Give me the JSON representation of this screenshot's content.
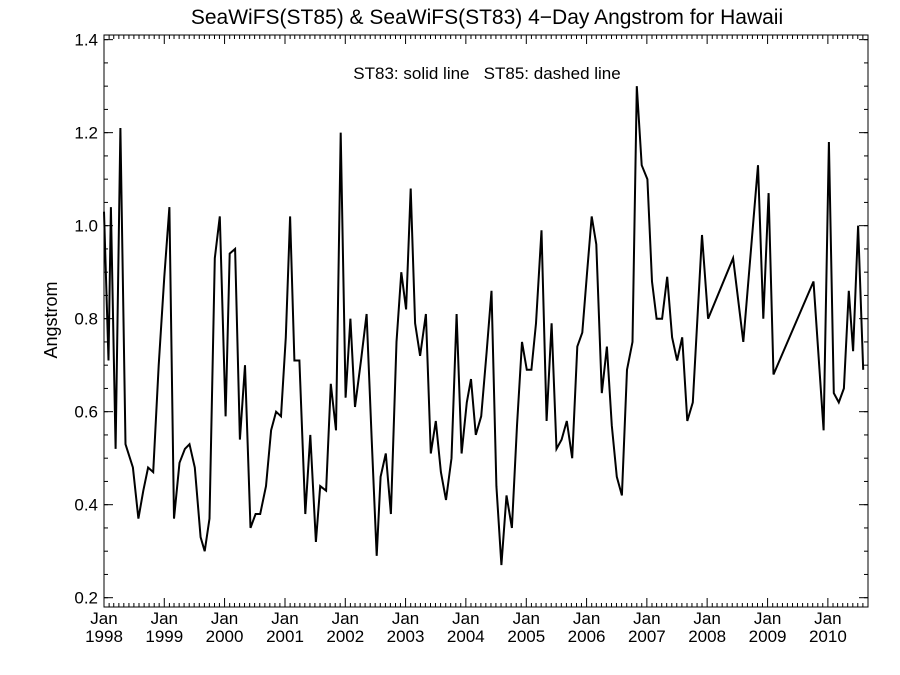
{
  "chart_data": {
    "type": "line",
    "title": "SeaWiFS(ST85) & SeaWiFS(ST83) 4−Day Angstrom for Hawaii",
    "annotation": "ST83: solid line   ST85: dashed line",
    "xlabel": "",
    "ylabel": "Angstrom",
    "xlim": [
      "1998-01-01",
      "2010-09-01"
    ],
    "ylim": [
      0.18,
      1.41
    ],
    "yticks": [
      0.2,
      0.4,
      0.6,
      0.8,
      1.0,
      1.2,
      1.4
    ],
    "ytick_labels": [
      "0.2",
      "0.4",
      "0.6",
      "0.8",
      "1.0",
      "1.2",
      "1.4"
    ],
    "xticks": [
      {
        "date": "1998-01-01",
        "month": "Jan",
        "year": "1998"
      },
      {
        "date": "1999-01-01",
        "month": "Jan",
        "year": "1999"
      },
      {
        "date": "2000-01-01",
        "month": "Jan",
        "year": "2000"
      },
      {
        "date": "2001-01-01",
        "month": "Jan",
        "year": "2001"
      },
      {
        "date": "2002-01-01",
        "month": "Jan",
        "year": "2002"
      },
      {
        "date": "2003-01-01",
        "month": "Jan",
        "year": "2003"
      },
      {
        "date": "2004-01-01",
        "month": "Jan",
        "year": "2004"
      },
      {
        "date": "2005-01-01",
        "month": "Jan",
        "year": "2005"
      },
      {
        "date": "2006-01-01",
        "month": "Jan",
        "year": "2006"
      },
      {
        "date": "2007-01-01",
        "month": "Jan",
        "year": "2007"
      },
      {
        "date": "2008-01-01",
        "month": "Jan",
        "year": "2008"
      },
      {
        "date": "2009-01-01",
        "month": "Jan",
        "year": "2009"
      },
      {
        "date": "2010-01-01",
        "month": "Jan",
        "year": "2010"
      }
    ],
    "grid": false,
    "series": [
      {
        "name": "ST83",
        "style": "solid",
        "color": "#000000",
        "points": [
          [
            "1998-01-01",
            1.03
          ],
          [
            "1998-01-28",
            0.71
          ],
          [
            "1998-02-12",
            1.04
          ],
          [
            "1998-03-12",
            0.52
          ],
          [
            "1998-04-10",
            1.21
          ],
          [
            "1998-05-11",
            0.53
          ],
          [
            "1998-06-25",
            0.48
          ],
          [
            "1998-07-28",
            0.37
          ],
          [
            "1998-08-27",
            0.43
          ],
          [
            "1998-09-25",
            0.48
          ],
          [
            "1998-10-26",
            0.47
          ],
          [
            "1998-11-28",
            0.7
          ],
          [
            "1999-01-01",
            0.89
          ],
          [
            "1999-02-01",
            1.04
          ],
          [
            "1999-03-01",
            0.37
          ],
          [
            "1999-04-03",
            0.49
          ],
          [
            "1999-05-06",
            0.52
          ],
          [
            "1999-06-03",
            0.53
          ],
          [
            "1999-07-05",
            0.48
          ],
          [
            "1999-08-09",
            0.33
          ],
          [
            "1999-09-03",
            0.3
          ],
          [
            "1999-10-02",
            0.37
          ],
          [
            "1999-11-03",
            0.93
          ],
          [
            "1999-12-03",
            1.02
          ],
          [
            "2000-01-07",
            0.59
          ],
          [
            "2000-02-01",
            0.94
          ],
          [
            "2000-03-05",
            0.95
          ],
          [
            "2000-04-03",
            0.54
          ],
          [
            "2000-05-04",
            0.7
          ],
          [
            "2000-06-06",
            0.35
          ],
          [
            "2000-07-07",
            0.38
          ],
          [
            "2000-08-04",
            0.38
          ],
          [
            "2000-09-08",
            0.44
          ],
          [
            "2000-10-09",
            0.56
          ],
          [
            "2000-11-08",
            0.6
          ],
          [
            "2000-12-08",
            0.59
          ],
          [
            "2001-01-06",
            0.76
          ],
          [
            "2001-02-01",
            1.02
          ],
          [
            "2001-02-27",
            0.71
          ],
          [
            "2001-03-29",
            0.71
          ],
          [
            "2001-05-04",
            0.38
          ],
          [
            "2001-06-03",
            0.55
          ],
          [
            "2001-07-07",
            0.32
          ],
          [
            "2001-08-02",
            0.44
          ],
          [
            "2001-09-07",
            0.43
          ],
          [
            "2001-10-05",
            0.66
          ],
          [
            "2001-11-06",
            0.56
          ],
          [
            "2001-12-04",
            1.2
          ],
          [
            "2002-01-03",
            0.63
          ],
          [
            "2002-02-01",
            0.8
          ],
          [
            "2002-03-01",
            0.61
          ],
          [
            "2002-04-06",
            0.71
          ],
          [
            "2002-05-10",
            0.81
          ],
          [
            "2002-06-10",
            0.54
          ],
          [
            "2002-07-10",
            0.29
          ],
          [
            "2002-08-03",
            0.46
          ],
          [
            "2002-09-03",
            0.51
          ],
          [
            "2002-10-04",
            0.38
          ],
          [
            "2002-11-07",
            0.75
          ],
          [
            "2002-12-06",
            0.9
          ],
          [
            "2003-01-04",
            0.82
          ],
          [
            "2003-02-01",
            1.08
          ],
          [
            "2003-02-28",
            0.79
          ],
          [
            "2003-03-30",
            0.72
          ],
          [
            "2003-05-04",
            0.81
          ],
          [
            "2003-06-03",
            0.51
          ],
          [
            "2003-07-03",
            0.58
          ],
          [
            "2003-08-03",
            0.47
          ],
          [
            "2003-09-03",
            0.41
          ],
          [
            "2003-10-06",
            0.5
          ],
          [
            "2003-11-06",
            0.81
          ],
          [
            "2003-12-06",
            0.51
          ],
          [
            "2004-01-07",
            0.62
          ],
          [
            "2004-02-01",
            0.67
          ],
          [
            "2004-03-01",
            0.55
          ],
          [
            "2004-04-03",
            0.59
          ],
          [
            "2004-05-06",
            0.73
          ],
          [
            "2004-06-04",
            0.86
          ],
          [
            "2004-07-04",
            0.44
          ],
          [
            "2004-08-03",
            0.27
          ],
          [
            "2004-09-03",
            0.42
          ],
          [
            "2004-10-06",
            0.35
          ],
          [
            "2004-11-06",
            0.57
          ],
          [
            "2004-12-06",
            0.75
          ],
          [
            "2005-01-04",
            0.69
          ],
          [
            "2005-02-01",
            0.69
          ],
          [
            "2005-03-01",
            0.79
          ],
          [
            "2005-04-03",
            0.99
          ],
          [
            "2005-05-04",
            0.58
          ],
          [
            "2005-06-03",
            0.79
          ],
          [
            "2005-07-03",
            0.52
          ],
          [
            "2005-08-03",
            0.54
          ],
          [
            "2005-09-03",
            0.58
          ],
          [
            "2005-10-06",
            0.5
          ],
          [
            "2005-11-06",
            0.74
          ],
          [
            "2005-12-06",
            0.77
          ],
          [
            "2006-01-04",
            0.9
          ],
          [
            "2006-02-01",
            1.02
          ],
          [
            "2006-03-01",
            0.96
          ],
          [
            "2006-04-03",
            0.64
          ],
          [
            "2006-05-04",
            0.74
          ],
          [
            "2006-06-03",
            0.57
          ],
          [
            "2006-07-03",
            0.46
          ],
          [
            "2006-08-03",
            0.42
          ],
          [
            "2006-09-03",
            0.69
          ],
          [
            "2006-10-06",
            0.75
          ],
          [
            "2006-11-01",
            1.3
          ],
          [
            "2006-12-01",
            1.13
          ],
          [
            "2007-01-04",
            1.1
          ],
          [
            "2007-02-01",
            0.88
          ],
          [
            "2007-03-01",
            0.8
          ],
          [
            "2007-04-03",
            0.8
          ],
          [
            "2007-05-04",
            0.89
          ],
          [
            "2007-06-03",
            0.76
          ],
          [
            "2007-07-03",
            0.71
          ],
          [
            "2007-08-03",
            0.76
          ],
          [
            "2007-09-03",
            0.58
          ],
          [
            "2007-10-06",
            0.62
          ],
          [
            "2007-12-01",
            0.98
          ],
          [
            "2008-01-07",
            0.8
          ],
          [
            "2008-06-06",
            0.93
          ],
          [
            "2008-08-07",
            0.75
          ],
          [
            "2008-11-04",
            1.13
          ],
          [
            "2008-12-06",
            0.8
          ],
          [
            "2009-01-07",
            1.07
          ],
          [
            "2009-02-06",
            0.68
          ],
          [
            "2009-10-06",
            0.88
          ],
          [
            "2009-12-06",
            0.56
          ],
          [
            "2010-01-07",
            1.18
          ],
          [
            "2010-02-06",
            0.64
          ],
          [
            "2010-03-08",
            0.62
          ],
          [
            "2010-04-08",
            0.65
          ],
          [
            "2010-05-08",
            0.86
          ],
          [
            "2010-06-03",
            0.73
          ],
          [
            "2010-07-03",
            1.0
          ],
          [
            "2010-08-03",
            0.69
          ]
        ]
      }
    ]
  }
}
